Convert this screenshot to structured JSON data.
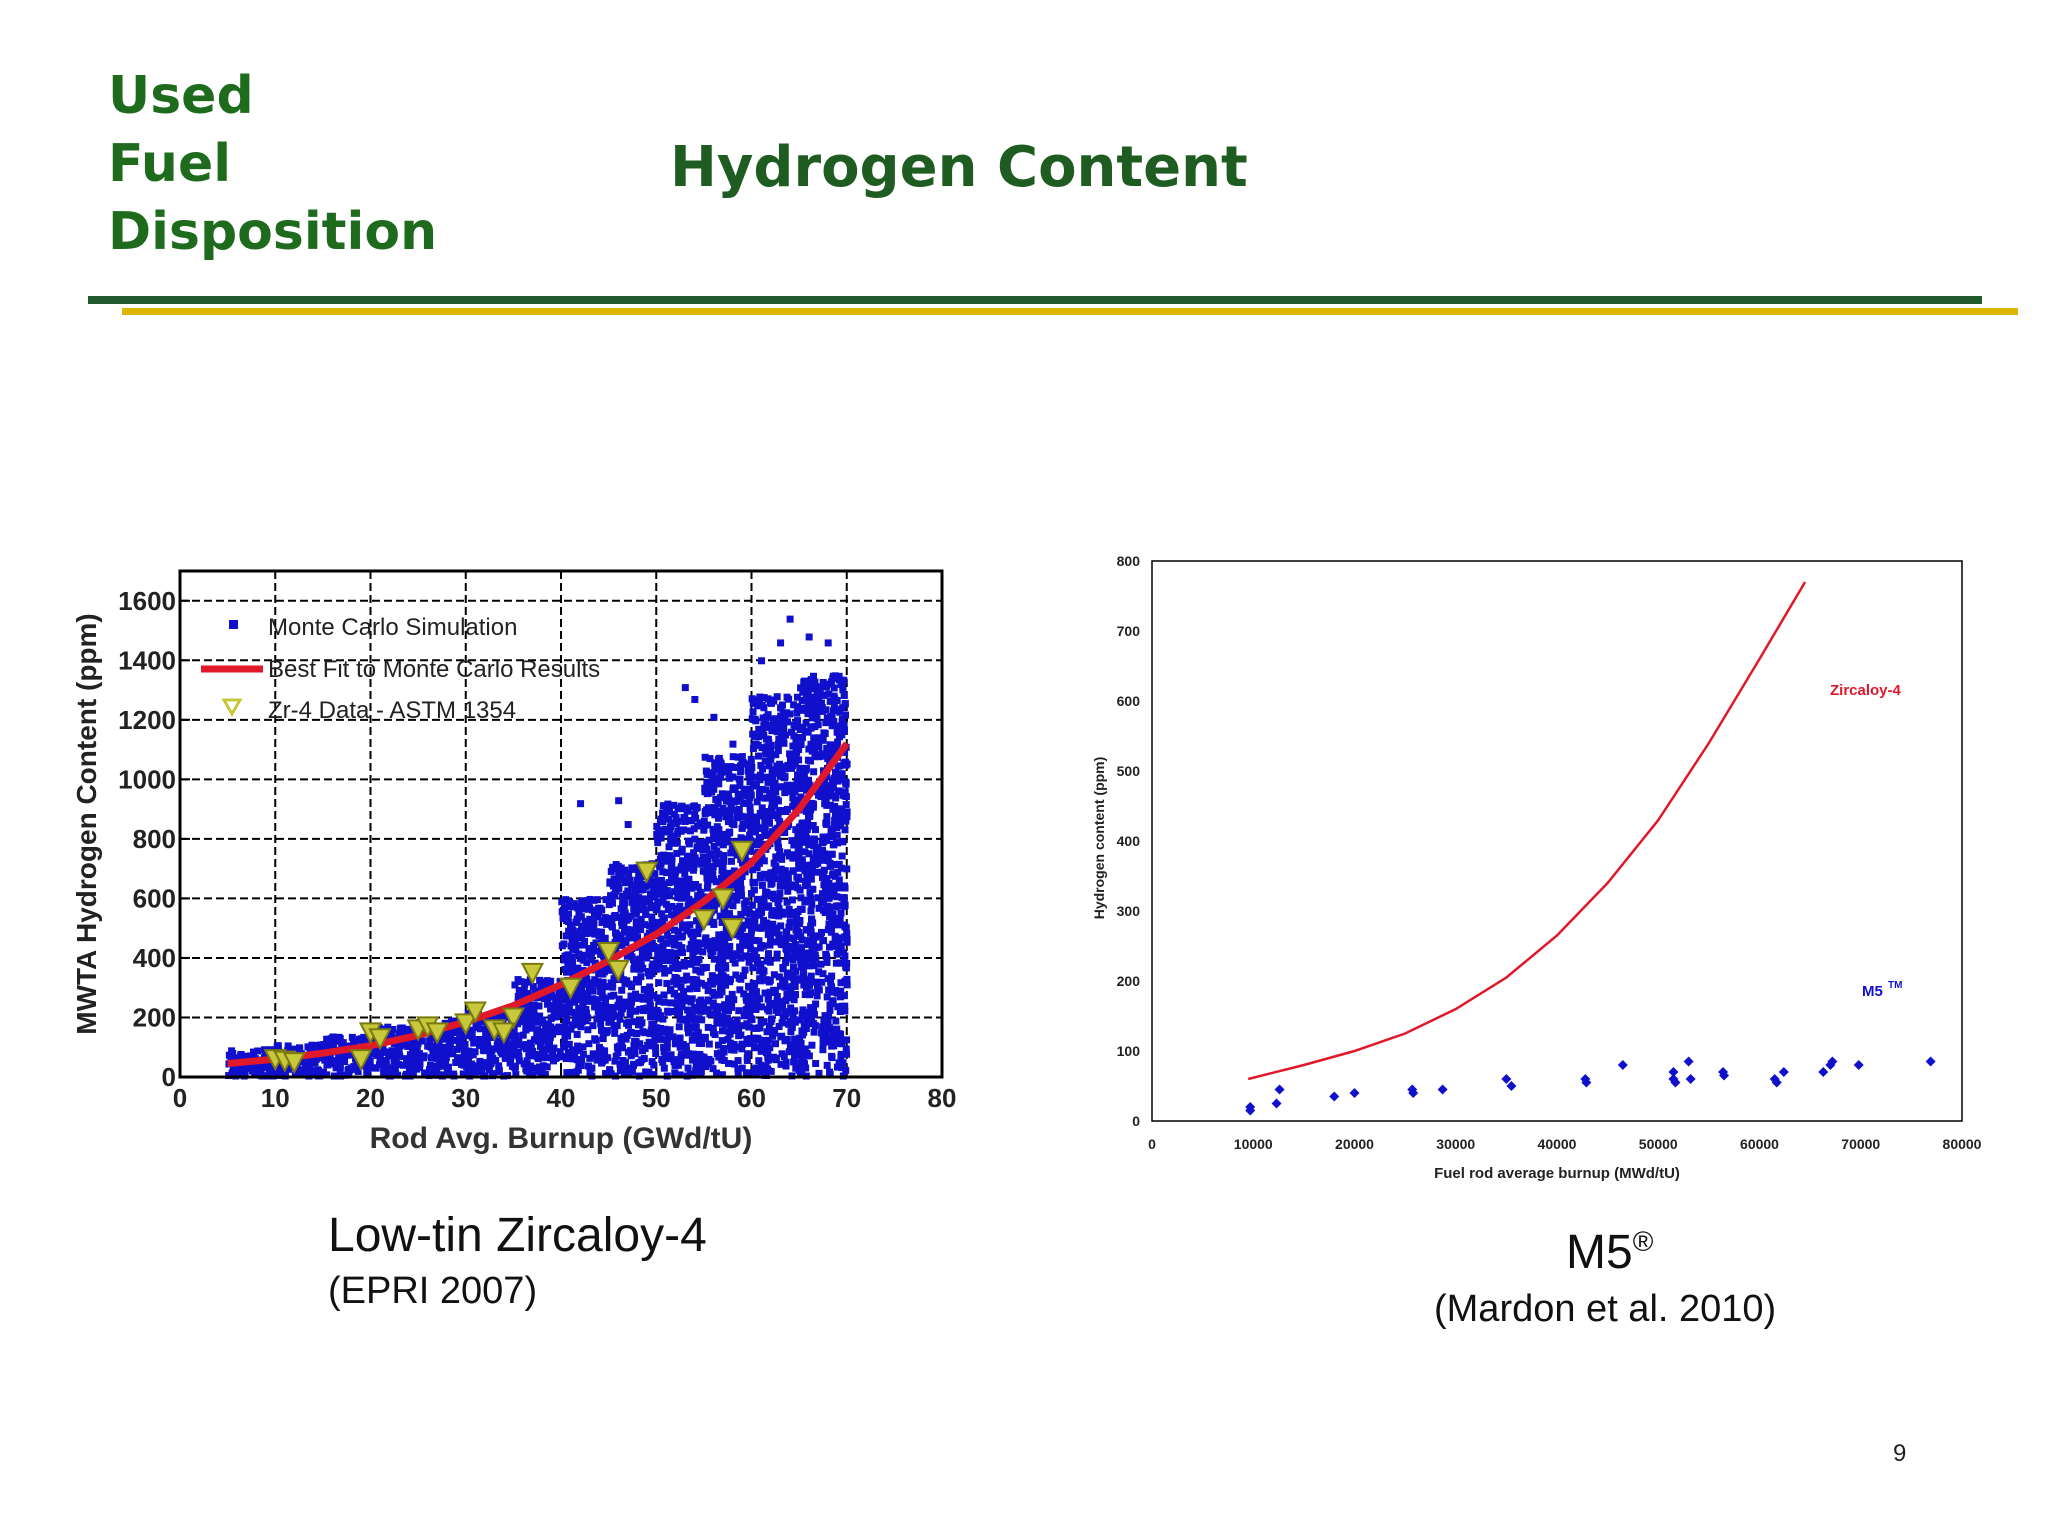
{
  "header": {
    "left_lines": [
      "Used",
      "Fuel",
      "Disposition"
    ],
    "title": "Hydrogen Content"
  },
  "captions": {
    "left_title": "Low-tin Zircaloy-4",
    "left_source": "(EPRI 2007)",
    "right_title": "M5",
    "right_title_mark": "®",
    "right_source": "(Mardon et al. 2010)"
  },
  "page_number": "9",
  "colors": {
    "green": "#1e6b1e",
    "gold": "#dcb600",
    "blue": "#1010cc",
    "red": "#e0182a",
    "yellow": "#c8c83a"
  },
  "chart_data": [
    {
      "type": "scatter",
      "xlabel": "Rod Avg. Burnup (GWd/tU)",
      "ylabel": "MWTA Hydrogen Content (ppm)",
      "xlim": [
        0,
        80
      ],
      "ylim": [
        0,
        1700
      ],
      "xticks": [
        0,
        10,
        20,
        30,
        40,
        50,
        60,
        70,
        80
      ],
      "yticks": [
        0,
        200,
        400,
        600,
        800,
        1000,
        1200,
        1400,
        1600
      ],
      "grid": true,
      "legend_position": "top-left",
      "series": [
        {
          "name": "Monte Carlo Simulation",
          "kind": "point-cloud",
          "envelope": [
            [
              5,
              10,
              95
            ],
            [
              10,
              15,
              110
            ],
            [
              15,
              20,
              140
            ],
            [
              20,
              25,
              170
            ],
            [
              25,
              30,
              190
            ],
            [
              30,
              35,
              220
            ],
            [
              35,
              40,
              330
            ],
            [
              40,
              45,
              600
            ],
            [
              45,
              50,
              720
            ],
            [
              50,
              55,
              920
            ],
            [
              55,
              60,
              1080
            ],
            [
              60,
              65,
              1280
            ],
            [
              65,
              70,
              1350
            ]
          ]
        },
        {
          "name": "Best Fit to Monte Carlo Results",
          "kind": "line",
          "x": [
            5,
            10,
            15,
            20,
            25,
            30,
            35,
            40,
            45,
            50,
            55,
            60,
            65,
            70
          ],
          "y": [
            45,
            60,
            80,
            105,
            140,
            185,
            240,
            310,
            390,
            480,
            590,
            720,
            900,
            1120
          ]
        },
        {
          "name": "Zr-4 Data - ASTM 1354",
          "kind": "triangle",
          "x": [
            10,
            11,
            12,
            19,
            20,
            21,
            25,
            26,
            27,
            30,
            31,
            33,
            35,
            34,
            37,
            41,
            45,
            46,
            49,
            55,
            57,
            58,
            59
          ],
          "y": [
            60,
            55,
            50,
            60,
            150,
            130,
            160,
            170,
            150,
            180,
            220,
            160,
            200,
            150,
            350,
            300,
            420,
            360,
            690,
            530,
            600,
            500,
            760
          ]
        }
      ]
    },
    {
      "type": "scatter",
      "xlabel": "Fuel rod average burnup (MWd/tU)",
      "ylabel": "Hydrogen content (ppm)",
      "xlim": [
        0,
        80000
      ],
      "ylim": [
        0,
        800
      ],
      "xticks": [
        0,
        10000,
        20000,
        30000,
        40000,
        50000,
        60000,
        70000,
        80000
      ],
      "yticks": [
        0,
        100,
        200,
        300,
        400,
        500,
        600,
        700,
        800
      ],
      "grid": false,
      "annotations": [
        {
          "text": "Zircaloy-4",
          "color": "#e0182a"
        },
        {
          "text": "M5",
          "sup": "TM",
          "color": "#1010cc"
        }
      ],
      "series": [
        {
          "name": "Zircaloy-4",
          "kind": "line",
          "x": [
            9500,
            15000,
            20000,
            25000,
            30000,
            35000,
            40000,
            45000,
            50000,
            55000,
            60000,
            64500
          ],
          "y": [
            60,
            80,
            100,
            125,
            160,
            205,
            265,
            340,
            430,
            540,
            660,
            770
          ]
        },
        {
          "name": "M5",
          "kind": "points",
          "x": [
            9700,
            9700,
            12300,
            12600,
            18000,
            20000,
            25700,
            25800,
            28700,
            35000,
            35500,
            42800,
            42900,
            46500,
            51500,
            51500,
            51700,
            53000,
            53200,
            56400,
            56500,
            61500,
            61700,
            62400,
            66300,
            67000,
            67200,
            69800,
            76900
          ],
          "y": [
            20,
            15,
            25,
            45,
            35,
            40,
            45,
            40,
            45,
            60,
            50,
            60,
            55,
            80,
            70,
            60,
            55,
            85,
            60,
            70,
            65,
            60,
            55,
            70,
            70,
            80,
            85,
            80,
            85
          ]
        }
      ]
    }
  ]
}
